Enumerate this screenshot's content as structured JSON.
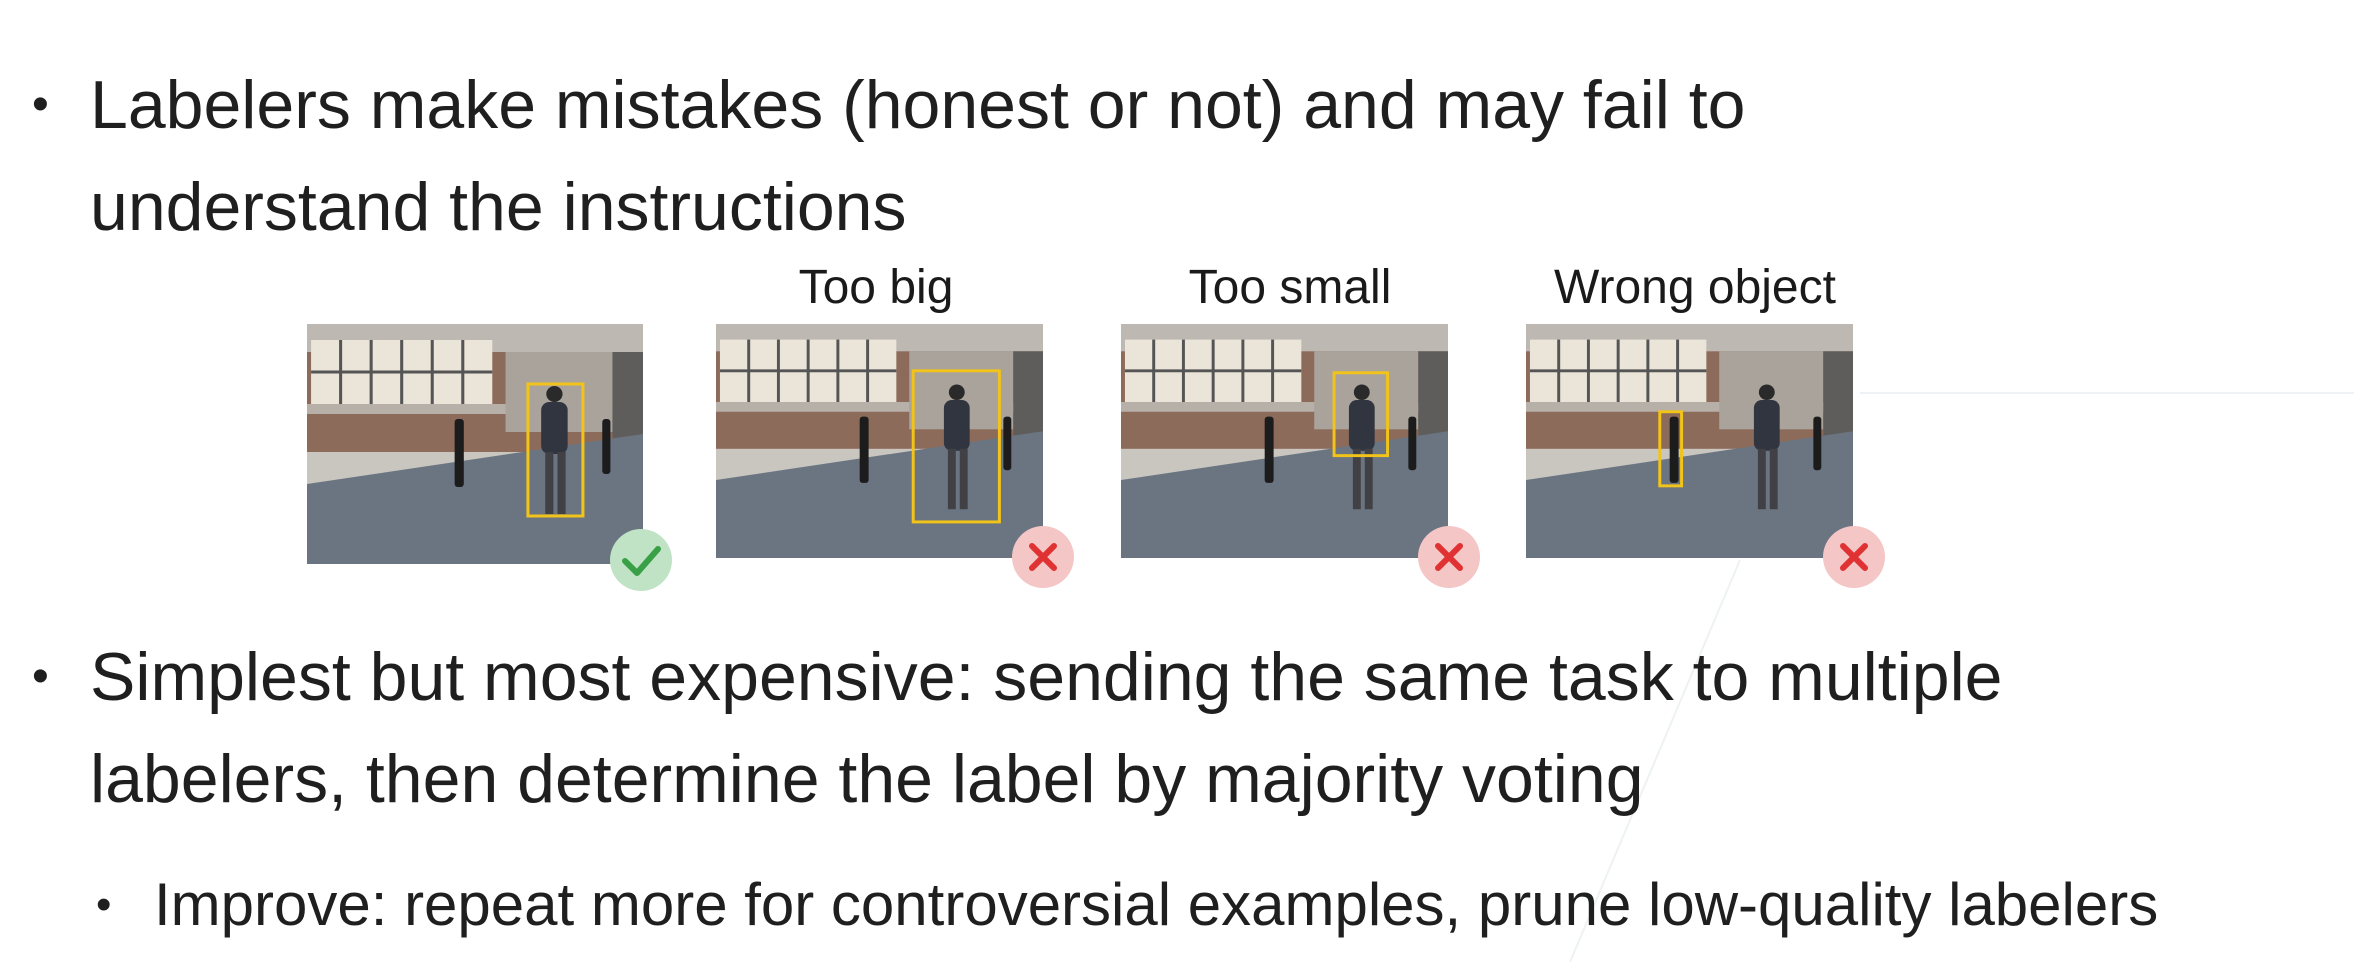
{
  "slide": {
    "bullets": [
      {
        "text": "Labelers make mistakes (honest or not) and may fail to understand the instructions"
      },
      {
        "text": "Simplest but most expensive: sending the same task to multiple labelers, then determine the label by majority voting"
      }
    ],
    "sub_bullet": {
      "text": "Improve: repeat more for controversial examples, prune low-quality labelers"
    }
  },
  "examples": [
    {
      "caption": "",
      "verdict": "correct",
      "icon": "checkmark-icon"
    },
    {
      "caption": "Too big",
      "verdict": "wrong",
      "icon": "cross-icon"
    },
    {
      "caption": "Too small",
      "verdict": "wrong",
      "icon": "cross-icon"
    },
    {
      "caption": "Wrong object",
      "verdict": "wrong",
      "icon": "cross-icon"
    }
  ],
  "colors": {
    "box": "#f2c318",
    "correct_bg": "#bfe3c4",
    "correct_fg": "#3aa047",
    "wrong_bg": "#f4c6c6",
    "wrong_fg": "#e03232"
  }
}
